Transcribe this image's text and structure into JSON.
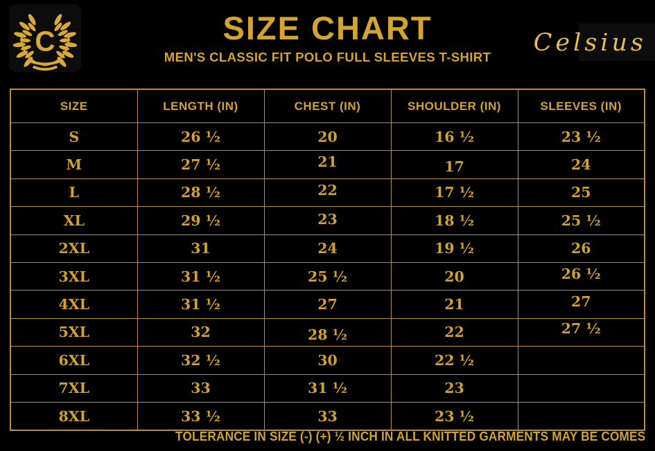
{
  "colors": {
    "background": "#000000",
    "gold": "#d2a42f",
    "gold_bright": "#e6bc55",
    "table_border": "#bd9029",
    "logo_tile": "#0c0c0c"
  },
  "brand": {
    "logo_letter": "C",
    "wordmark": "Celsius"
  },
  "header": {
    "title": "SIZE CHART",
    "subtitle": "MEN'S CLASSIC FIT POLO FULL SLEEVES T-SHIRT"
  },
  "chart_data": {
    "type": "table",
    "title": "SIZE CHART",
    "subtitle": "MEN'S CLASSIC FIT POLO FULL SLEEVES T-SHIRT",
    "columns": [
      "SIZE",
      "LENGTH (IN)",
      "CHEST (IN)",
      "SHOULDER (IN)",
      "SLEEVES (IN)"
    ],
    "rows": [
      [
        "S",
        "26 ½",
        "20",
        "16 ½",
        "23 ½"
      ],
      [
        "M",
        "27 ½",
        "21",
        "17",
        "24"
      ],
      [
        "L",
        "28 ½",
        "22",
        "17 ½",
        "25"
      ],
      [
        "XL",
        "29 ½",
        "23",
        "18 ½",
        "25 ½"
      ],
      [
        "2XL",
        "31",
        "24",
        "19 ½",
        "26"
      ],
      [
        "3XL",
        "31 ½",
        "25 ½",
        "20",
        "26 ½"
      ],
      [
        "4XL",
        "31 ½",
        "27",
        "21",
        "27"
      ],
      [
        "5XL",
        "32",
        "28 ½",
        "22",
        "27 ½"
      ],
      [
        "6XL",
        "32 ½",
        "30",
        "22 ½",
        ""
      ],
      [
        "7XL",
        "33",
        "31 ½",
        "23",
        ""
      ],
      [
        "8XL",
        "33 ½",
        "33",
        "23 ½",
        ""
      ]
    ]
  },
  "footer": {
    "tolerance_note": "TOLERANCE IN SIZE (-) (+) ½ INCH IN ALL KNITTED GARMENTS MAY BE COMES"
  }
}
